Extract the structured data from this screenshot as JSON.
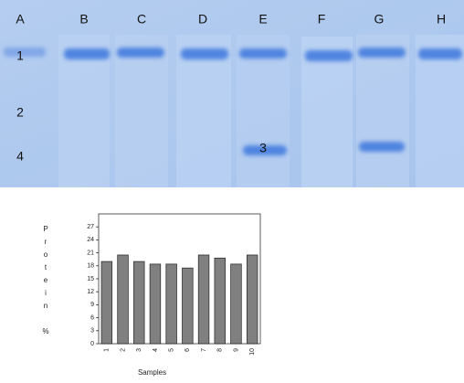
{
  "gel": {
    "lanes": [
      "A",
      "B",
      "C",
      "D",
      "E",
      "F",
      "G",
      "H"
    ],
    "rows": [
      "1",
      "2",
      "4"
    ],
    "band_label": "3"
  },
  "chart_data": {
    "type": "bar",
    "ylabel": "Protein %",
    "xlabel": "Samples",
    "categories": [
      "1",
      "2",
      "3",
      "4",
      "5",
      "6",
      "7",
      "8",
      "9",
      "10"
    ],
    "values": [
      19,
      20.5,
      19,
      18.4,
      18.4,
      17.5,
      20.5,
      19.8,
      18.4,
      20.5
    ],
    "color": "#808080",
    "ylim": [
      0,
      30
    ],
    "yticks": [
      0,
      3,
      6,
      9,
      12,
      15,
      18,
      21,
      24,
      27
    ]
  }
}
